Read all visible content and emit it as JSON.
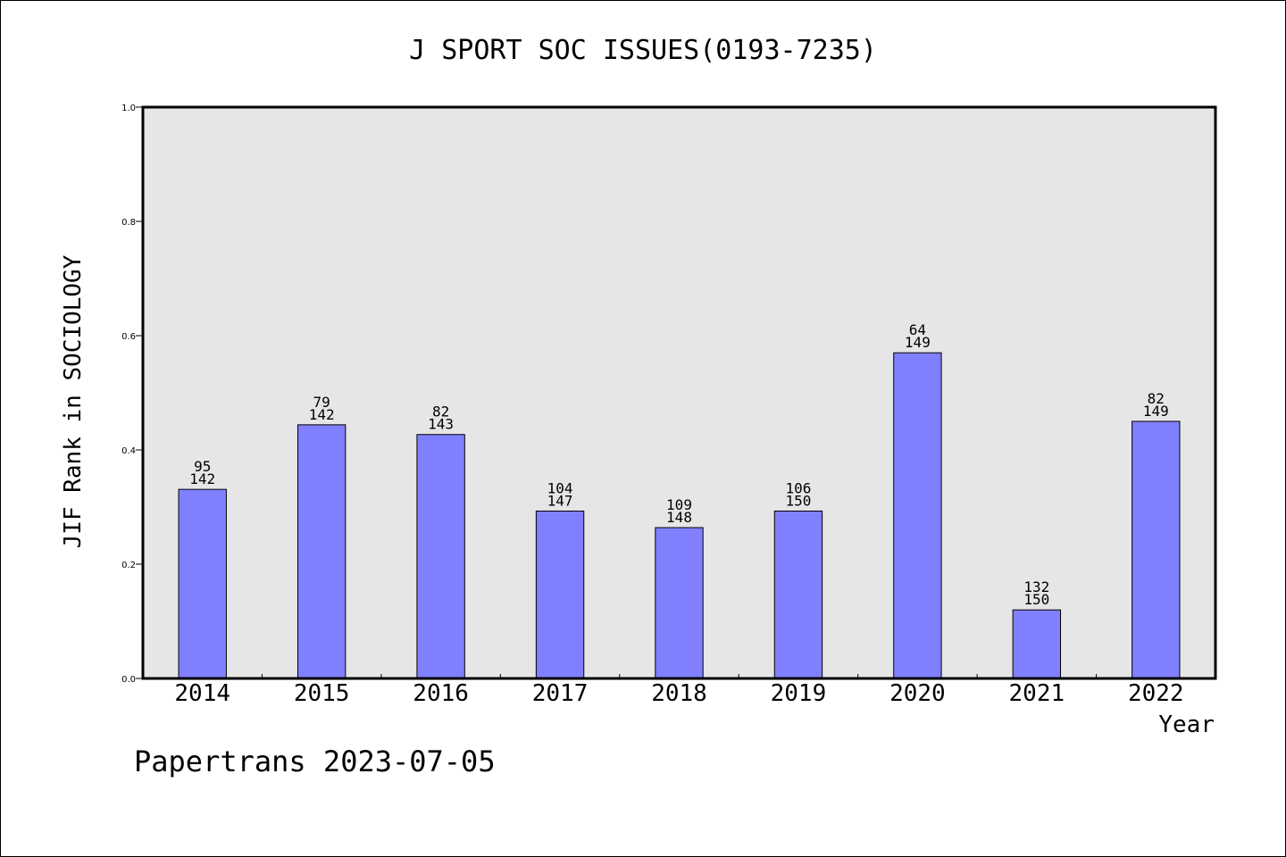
{
  "chart_data": {
    "type": "bar",
    "title": "J SPORT SOC ISSUES(0193-7235)",
    "xlabel": "Year",
    "ylabel": "JIF Rank in SOCIOLOGY",
    "ylim": [
      0,
      1.0
    ],
    "yticks": [
      "0.0",
      "0.2",
      "0.4",
      "0.6",
      "0.8",
      "1.0"
    ],
    "ytick_values": [
      0.0,
      0.2,
      0.4,
      0.6,
      0.8,
      1.0
    ],
    "categories": [
      "2014",
      "2015",
      "2016",
      "2017",
      "2018",
      "2019",
      "2020",
      "2021",
      "2022"
    ],
    "values": [
      0.331,
      0.444,
      0.427,
      0.293,
      0.264,
      0.293,
      0.57,
      0.12,
      0.45
    ],
    "rank_labels": [
      "95",
      "79",
      "82",
      "104",
      "109",
      "106",
      "64",
      "132",
      "82"
    ],
    "total_labels": [
      "142",
      "142",
      "143",
      "147",
      "148",
      "150",
      "149",
      "150",
      "149"
    ],
    "bar_color": "#8080ff",
    "plot_background": "#e6e6e6",
    "grid": false,
    "legend": "none"
  },
  "footer": {
    "watermark": "Papertrans 2023-07-05"
  }
}
